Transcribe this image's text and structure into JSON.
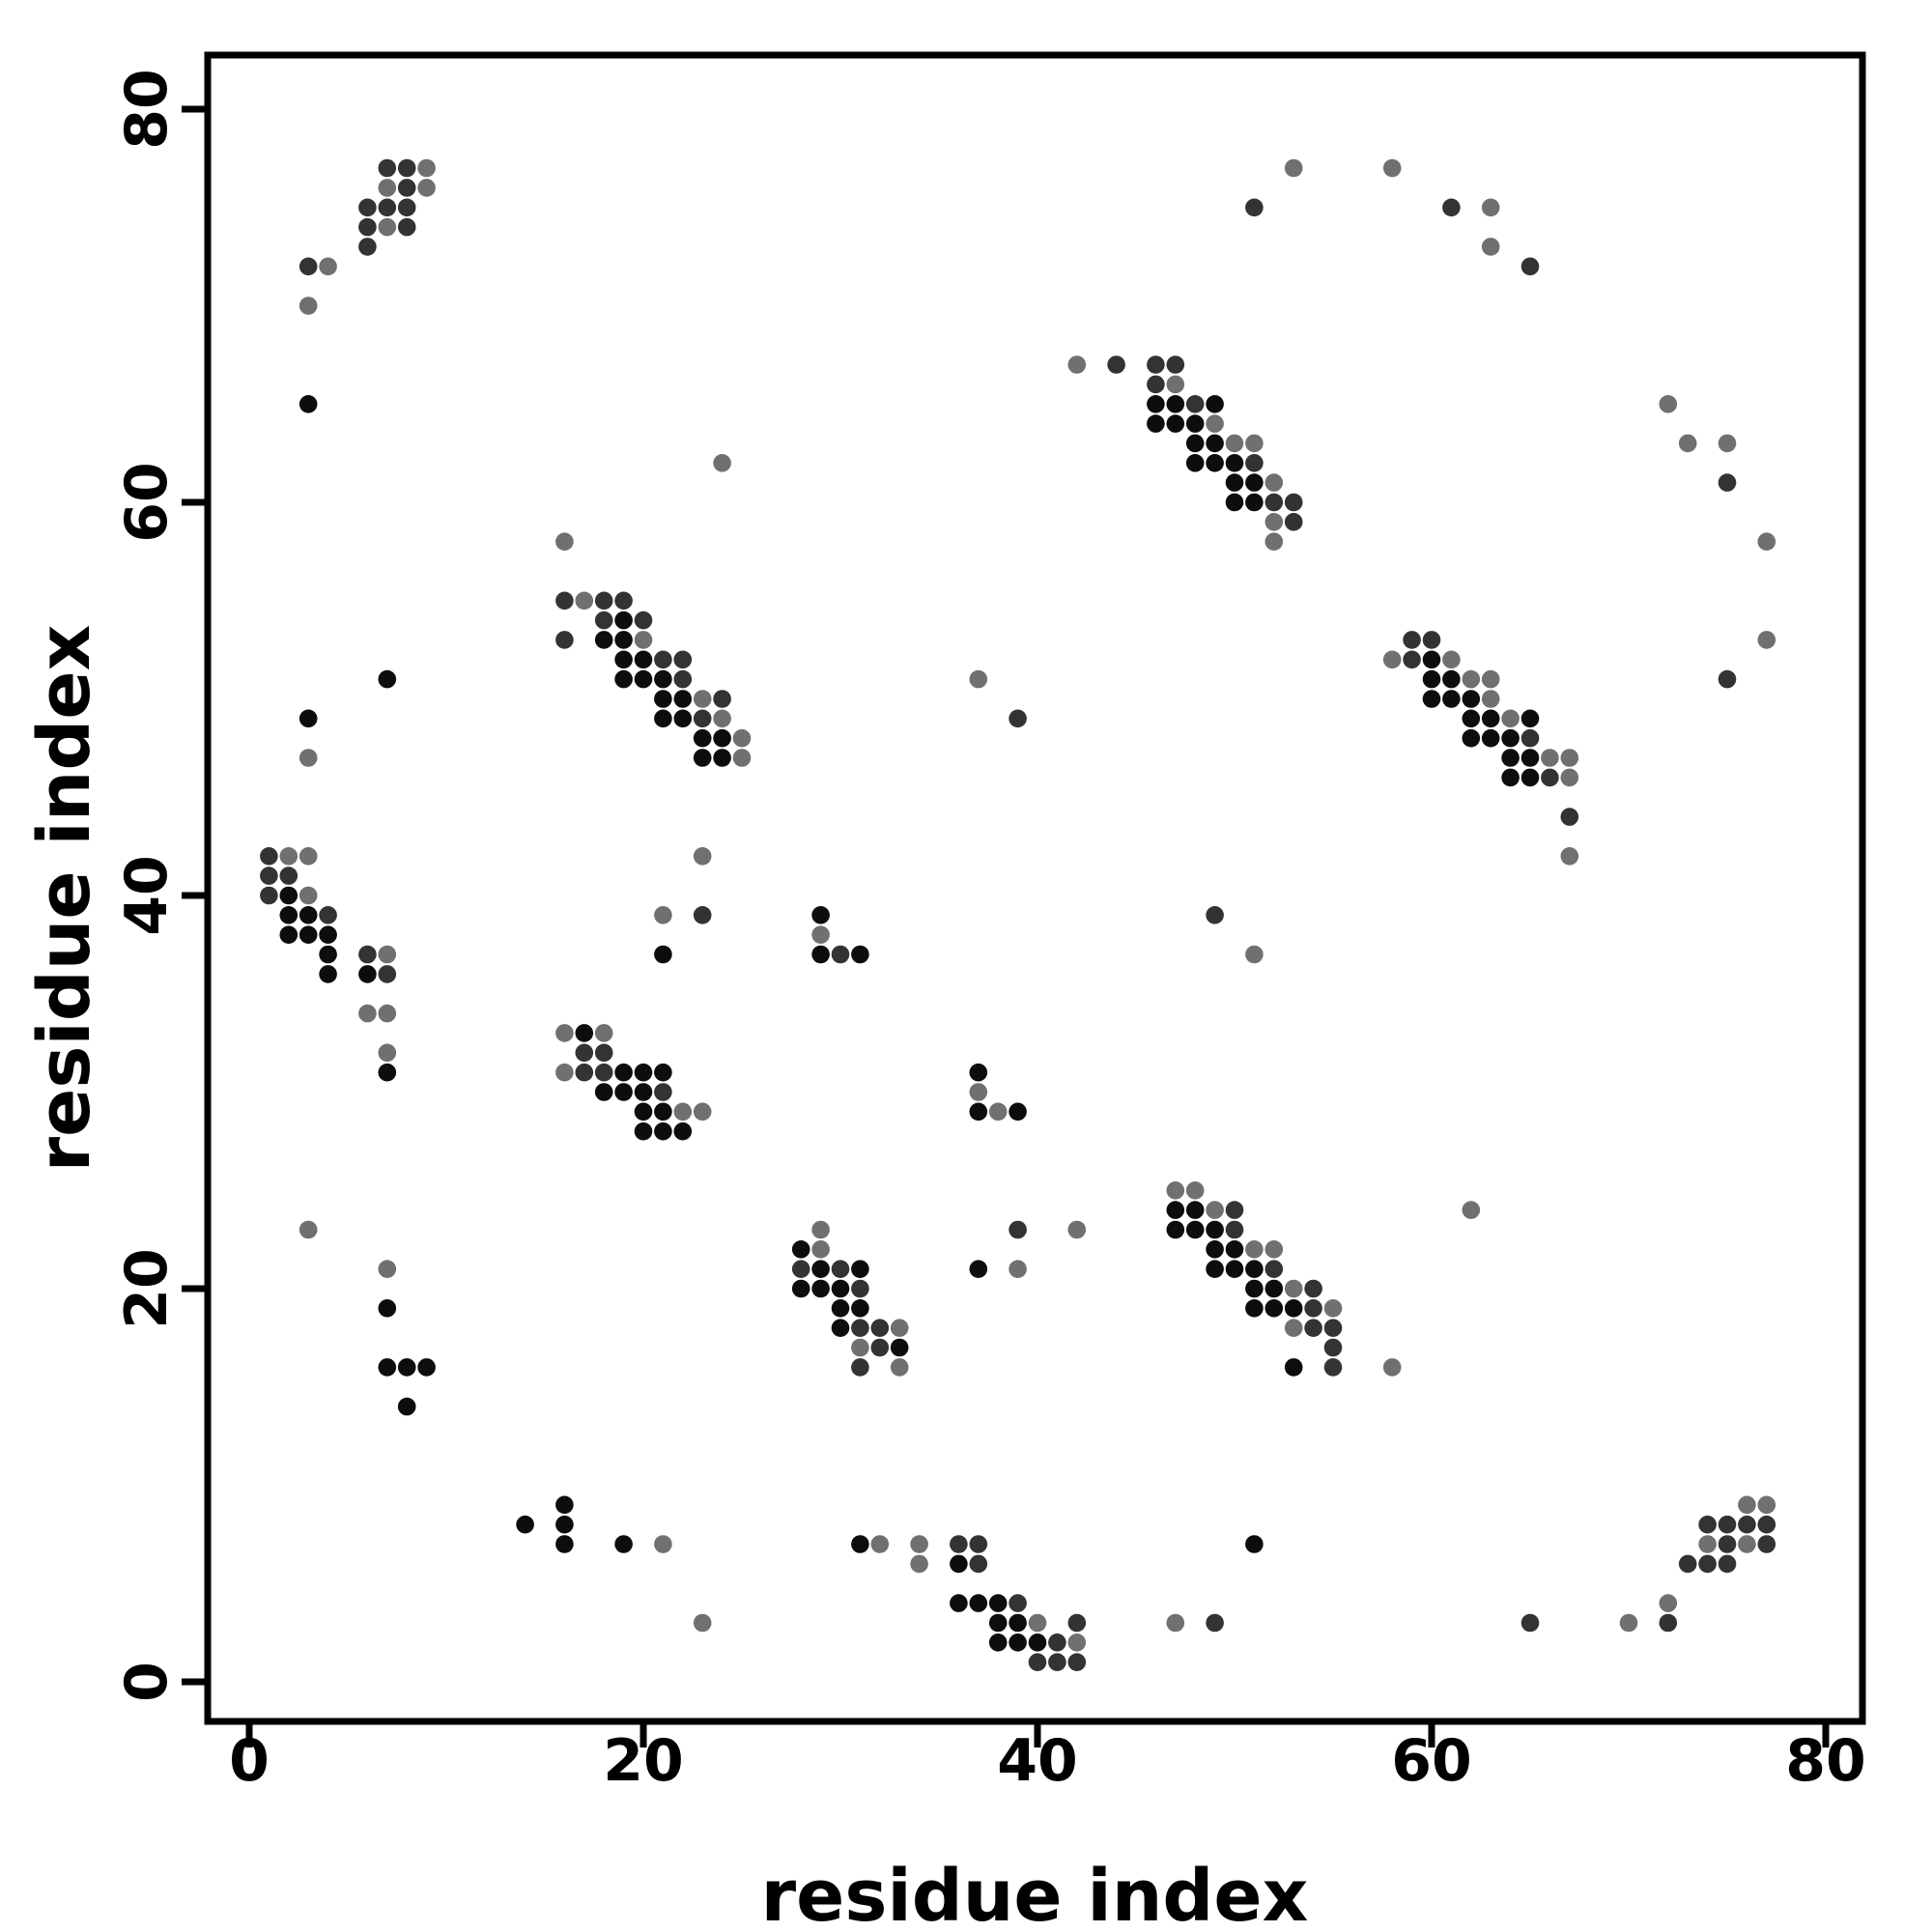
{
  "chart_data": {
    "type": "scatter",
    "title": "",
    "xlabel": "residue index",
    "ylabel": "residue index",
    "xlim": [
      -2.1,
      81.9
    ],
    "ylim": [
      -2.0,
      82.8
    ],
    "xticks": [
      0,
      20,
      40,
      60,
      80
    ],
    "yticks": [
      0,
      20,
      40,
      60,
      80
    ],
    "grid": false,
    "legend_position": "none",
    "marker": "circle",
    "shade_colors": {
      "b": "#0d0d0d",
      "d": "#333333",
      "g": "#707070"
    },
    "points": [
      [
        7,
        77,
        "d"
      ],
      [
        8,
        77,
        "d"
      ],
      [
        9,
        77,
        "g"
      ],
      [
        7,
        76,
        "g"
      ],
      [
        8,
        76,
        "d"
      ],
      [
        9,
        76,
        "g"
      ],
      [
        6,
        75,
        "d"
      ],
      [
        7,
        75,
        "d"
      ],
      [
        8,
        75,
        "d"
      ],
      [
        6,
        74,
        "d"
      ],
      [
        7,
        74,
        "g"
      ],
      [
        8,
        74,
        "d"
      ],
      [
        6,
        73,
        "d"
      ],
      [
        3,
        72,
        "d"
      ],
      [
        4,
        72,
        "g"
      ],
      [
        3,
        70,
        "g"
      ],
      [
        3,
        65,
        "b"
      ],
      [
        53,
        77,
        "g"
      ],
      [
        58,
        77,
        "g"
      ],
      [
        51,
        75,
        "d"
      ],
      [
        61,
        75,
        "d"
      ],
      [
        63,
        75,
        "g"
      ],
      [
        63,
        73,
        "g"
      ],
      [
        65,
        72,
        "d"
      ],
      [
        72,
        65,
        "g"
      ],
      [
        73,
        63,
        "g"
      ],
      [
        75,
        63,
        "g"
      ],
      [
        75,
        61,
        "d"
      ],
      [
        77,
        58,
        "g"
      ],
      [
        24,
        62,
        "g"
      ],
      [
        16,
        58,
        "g"
      ],
      [
        77,
        53,
        "g"
      ],
      [
        75,
        51,
        "d"
      ],
      [
        16,
        55,
        "d"
      ],
      [
        17,
        55,
        "g"
      ],
      [
        18,
        55,
        "d"
      ],
      [
        19,
        55,
        "d"
      ],
      [
        18,
        54,
        "d"
      ],
      [
        19,
        54,
        "b"
      ],
      [
        20,
        54,
        "d"
      ],
      [
        16,
        53,
        "d"
      ],
      [
        18,
        53,
        "b"
      ],
      [
        19,
        53,
        "b"
      ],
      [
        20,
        53,
        "g"
      ],
      [
        19,
        52,
        "b"
      ],
      [
        20,
        52,
        "b"
      ],
      [
        21,
        52,
        "d"
      ],
      [
        22,
        52,
        "d"
      ],
      [
        19,
        51,
        "b"
      ],
      [
        20,
        51,
        "b"
      ],
      [
        21,
        51,
        "b"
      ],
      [
        22,
        51,
        "d"
      ],
      [
        21,
        50,
        "b"
      ],
      [
        22,
        50,
        "b"
      ],
      [
        23,
        50,
        "g"
      ],
      [
        24,
        50,
        "d"
      ],
      [
        21,
        49,
        "b"
      ],
      [
        22,
        49,
        "b"
      ],
      [
        23,
        49,
        "d"
      ],
      [
        24,
        49,
        "g"
      ],
      [
        23,
        48,
        "b"
      ],
      [
        24,
        48,
        "b"
      ],
      [
        25,
        48,
        "g"
      ],
      [
        23,
        47,
        "b"
      ],
      [
        24,
        47,
        "b"
      ],
      [
        25,
        47,
        "g"
      ],
      [
        7,
        51,
        "b"
      ],
      [
        37,
        51,
        "g"
      ],
      [
        39,
        49,
        "d"
      ],
      [
        3,
        49,
        "b"
      ],
      [
        3,
        47,
        "g"
      ],
      [
        42,
        67,
        "g"
      ],
      [
        44,
        67,
        "d"
      ],
      [
        46,
        67,
        "d"
      ],
      [
        47,
        67,
        "d"
      ],
      [
        46,
        66,
        "d"
      ],
      [
        47,
        66,
        "g"
      ],
      [
        46,
        65,
        "b"
      ],
      [
        47,
        65,
        "b"
      ],
      [
        48,
        65,
        "d"
      ],
      [
        49,
        65,
        "b"
      ],
      [
        46,
        64,
        "b"
      ],
      [
        47,
        64,
        "b"
      ],
      [
        48,
        64,
        "b"
      ],
      [
        49,
        64,
        "g"
      ],
      [
        48,
        63,
        "b"
      ],
      [
        49,
        63,
        "b"
      ],
      [
        50,
        63,
        "g"
      ],
      [
        51,
        63,
        "g"
      ],
      [
        48,
        62,
        "b"
      ],
      [
        49,
        62,
        "b"
      ],
      [
        50,
        62,
        "b"
      ],
      [
        51,
        62,
        "d"
      ],
      [
        50,
        61,
        "b"
      ],
      [
        51,
        61,
        "b"
      ],
      [
        52,
        61,
        "g"
      ],
      [
        50,
        60,
        "b"
      ],
      [
        51,
        60,
        "b"
      ],
      [
        52,
        60,
        "d"
      ],
      [
        53,
        60,
        "d"
      ],
      [
        52,
        59,
        "g"
      ],
      [
        53,
        59,
        "d"
      ],
      [
        52,
        58,
        "g"
      ],
      [
        59,
        53,
        "d"
      ],
      [
        60,
        53,
        "d"
      ],
      [
        58,
        52,
        "g"
      ],
      [
        59,
        52,
        "d"
      ],
      [
        60,
        52,
        "b"
      ],
      [
        61,
        52,
        "g"
      ],
      [
        60,
        51,
        "b"
      ],
      [
        61,
        51,
        "b"
      ],
      [
        62,
        51,
        "g"
      ],
      [
        63,
        51,
        "g"
      ],
      [
        60,
        50,
        "b"
      ],
      [
        61,
        50,
        "b"
      ],
      [
        62,
        50,
        "b"
      ],
      [
        63,
        50,
        "g"
      ],
      [
        62,
        49,
        "b"
      ],
      [
        63,
        49,
        "b"
      ],
      [
        64,
        49,
        "g"
      ],
      [
        65,
        49,
        "b"
      ],
      [
        62,
        48,
        "b"
      ],
      [
        63,
        48,
        "b"
      ],
      [
        64,
        48,
        "b"
      ],
      [
        65,
        48,
        "d"
      ],
      [
        64,
        47,
        "b"
      ],
      [
        65,
        47,
        "b"
      ],
      [
        66,
        47,
        "g"
      ],
      [
        67,
        47,
        "g"
      ],
      [
        64,
        46,
        "b"
      ],
      [
        65,
        46,
        "b"
      ],
      [
        66,
        46,
        "d"
      ],
      [
        67,
        46,
        "g"
      ],
      [
        67,
        44,
        "d"
      ],
      [
        67,
        42,
        "g"
      ],
      [
        29,
        39,
        "b"
      ],
      [
        29,
        38,
        "g"
      ],
      [
        29,
        37,
        "b"
      ],
      [
        30,
        37,
        "d"
      ],
      [
        31,
        37,
        "b"
      ],
      [
        37,
        31,
        "b"
      ],
      [
        37,
        30,
        "g"
      ],
      [
        37,
        29,
        "b"
      ],
      [
        38,
        29,
        "g"
      ],
      [
        39,
        29,
        "b"
      ],
      [
        49,
        39,
        "d"
      ],
      [
        51,
        37,
        "g"
      ],
      [
        1,
        42,
        "d"
      ],
      [
        2,
        42,
        "g"
      ],
      [
        3,
        42,
        "g"
      ],
      [
        1,
        41,
        "d"
      ],
      [
        2,
        41,
        "d"
      ],
      [
        1,
        40,
        "d"
      ],
      [
        2,
        40,
        "b"
      ],
      [
        3,
        40,
        "g"
      ],
      [
        2,
        39,
        "b"
      ],
      [
        3,
        39,
        "b"
      ],
      [
        4,
        39,
        "d"
      ],
      [
        2,
        38,
        "b"
      ],
      [
        3,
        38,
        "b"
      ],
      [
        4,
        38,
        "b"
      ],
      [
        4,
        37,
        "b"
      ],
      [
        6,
        37,
        "d"
      ],
      [
        7,
        37,
        "g"
      ],
      [
        4,
        36,
        "b"
      ],
      [
        6,
        36,
        "b"
      ],
      [
        7,
        36,
        "d"
      ],
      [
        6,
        34,
        "g"
      ],
      [
        7,
        34,
        "g"
      ],
      [
        7,
        32,
        "g"
      ],
      [
        7,
        31,
        "b"
      ],
      [
        23,
        42,
        "g"
      ],
      [
        21,
        39,
        "g"
      ],
      [
        23,
        39,
        "d"
      ],
      [
        21,
        37,
        "b"
      ],
      [
        3,
        23,
        "g"
      ],
      [
        16,
        33,
        "g"
      ],
      [
        17,
        33,
        "b"
      ],
      [
        18,
        33,
        "g"
      ],
      [
        17,
        32,
        "d"
      ],
      [
        18,
        32,
        "d"
      ],
      [
        16,
        31,
        "g"
      ],
      [
        17,
        31,
        "d"
      ],
      [
        18,
        31,
        "d"
      ],
      [
        19,
        31,
        "b"
      ],
      [
        20,
        31,
        "b"
      ],
      [
        21,
        31,
        "b"
      ],
      [
        18,
        30,
        "b"
      ],
      [
        19,
        30,
        "b"
      ],
      [
        20,
        30,
        "b"
      ],
      [
        21,
        30,
        "d"
      ],
      [
        20,
        29,
        "b"
      ],
      [
        21,
        29,
        "b"
      ],
      [
        22,
        29,
        "g"
      ],
      [
        23,
        29,
        "g"
      ],
      [
        20,
        28,
        "b"
      ],
      [
        21,
        28,
        "b"
      ],
      [
        22,
        28,
        "b"
      ],
      [
        29,
        23,
        "g"
      ],
      [
        28,
        22,
        "b"
      ],
      [
        29,
        22,
        "g"
      ],
      [
        28,
        21,
        "d"
      ],
      [
        29,
        21,
        "b"
      ],
      [
        30,
        21,
        "d"
      ],
      [
        31,
        21,
        "b"
      ],
      [
        28,
        20,
        "b"
      ],
      [
        29,
        20,
        "b"
      ],
      [
        30,
        20,
        "b"
      ],
      [
        31,
        20,
        "d"
      ],
      [
        30,
        19,
        "b"
      ],
      [
        31,
        19,
        "b"
      ],
      [
        30,
        18,
        "b"
      ],
      [
        31,
        18,
        "d"
      ],
      [
        32,
        18,
        "d"
      ],
      [
        33,
        18,
        "g"
      ],
      [
        31,
        17,
        "g"
      ],
      [
        32,
        17,
        "d"
      ],
      [
        33,
        17,
        "b"
      ],
      [
        31,
        16,
        "d"
      ],
      [
        33,
        16,
        "g"
      ],
      [
        37,
        21,
        "b"
      ],
      [
        39,
        21,
        "g"
      ],
      [
        39,
        23,
        "d"
      ],
      [
        42,
        23,
        "g"
      ],
      [
        47,
        25,
        "g"
      ],
      [
        48,
        25,
        "g"
      ],
      [
        47,
        24,
        "b"
      ],
      [
        48,
        24,
        "b"
      ],
      [
        49,
        24,
        "g"
      ],
      [
        50,
        24,
        "d"
      ],
      [
        47,
        23,
        "b"
      ],
      [
        48,
        23,
        "b"
      ],
      [
        49,
        23,
        "b"
      ],
      [
        50,
        23,
        "d"
      ],
      [
        49,
        22,
        "b"
      ],
      [
        50,
        22,
        "b"
      ],
      [
        51,
        22,
        "g"
      ],
      [
        52,
        22,
        "g"
      ],
      [
        49,
        21,
        "b"
      ],
      [
        50,
        21,
        "b"
      ],
      [
        51,
        21,
        "b"
      ],
      [
        52,
        21,
        "d"
      ],
      [
        51,
        20,
        "b"
      ],
      [
        52,
        20,
        "b"
      ],
      [
        53,
        20,
        "g"
      ],
      [
        54,
        20,
        "d"
      ],
      [
        51,
        19,
        "b"
      ],
      [
        52,
        19,
        "b"
      ],
      [
        53,
        19,
        "b"
      ],
      [
        54,
        19,
        "d"
      ],
      [
        55,
        19,
        "g"
      ],
      [
        53,
        18,
        "g"
      ],
      [
        54,
        18,
        "d"
      ],
      [
        55,
        18,
        "d"
      ],
      [
        55,
        17,
        "d"
      ],
      [
        53,
        16,
        "b"
      ],
      [
        55,
        16,
        "d"
      ],
      [
        58,
        16,
        "g"
      ],
      [
        62,
        24,
        "g"
      ],
      [
        31,
        7,
        "b"
      ],
      [
        32,
        7,
        "g"
      ],
      [
        34,
        7,
        "g"
      ],
      [
        36,
        7,
        "d"
      ],
      [
        37,
        7,
        "d"
      ],
      [
        34,
        6,
        "g"
      ],
      [
        36,
        6,
        "b"
      ],
      [
        37,
        6,
        "d"
      ],
      [
        36,
        4,
        "b"
      ],
      [
        37,
        4,
        "b"
      ],
      [
        38,
        4,
        "b"
      ],
      [
        39,
        4,
        "d"
      ],
      [
        38,
        3,
        "b"
      ],
      [
        39,
        3,
        "b"
      ],
      [
        40,
        3,
        "g"
      ],
      [
        42,
        3,
        "d"
      ],
      [
        38,
        2,
        "b"
      ],
      [
        39,
        2,
        "b"
      ],
      [
        40,
        2,
        "b"
      ],
      [
        41,
        2,
        "d"
      ],
      [
        42,
        2,
        "g"
      ],
      [
        40,
        1,
        "d"
      ],
      [
        41,
        1,
        "d"
      ],
      [
        42,
        1,
        "d"
      ],
      [
        7,
        21,
        "g"
      ],
      [
        7,
        19,
        "b"
      ],
      [
        7,
        16,
        "b"
      ],
      [
        8,
        16,
        "b"
      ],
      [
        9,
        16,
        "b"
      ],
      [
        8,
        14,
        "b"
      ],
      [
        14,
        8,
        "b"
      ],
      [
        16,
        9,
        "b"
      ],
      [
        16,
        8,
        "b"
      ],
      [
        16,
        7,
        "b"
      ],
      [
        19,
        7,
        "b"
      ],
      [
        21,
        7,
        "g"
      ],
      [
        23,
        3,
        "g"
      ],
      [
        51,
        7,
        "b"
      ],
      [
        47,
        3,
        "g"
      ],
      [
        49,
        3,
        "d"
      ],
      [
        65,
        3,
        "d"
      ],
      [
        70,
        3,
        "g"
      ],
      [
        72,
        4,
        "g"
      ],
      [
        72,
        3,
        "d"
      ],
      [
        76,
        9,
        "g"
      ],
      [
        77,
        9,
        "g"
      ],
      [
        74,
        8,
        "d"
      ],
      [
        75,
        8,
        "d"
      ],
      [
        76,
        8,
        "d"
      ],
      [
        77,
        8,
        "d"
      ],
      [
        74,
        7,
        "g"
      ],
      [
        75,
        7,
        "d"
      ],
      [
        76,
        7,
        "g"
      ],
      [
        77,
        7,
        "d"
      ],
      [
        73,
        6,
        "d"
      ],
      [
        74,
        6,
        "d"
      ],
      [
        75,
        6,
        "d"
      ]
    ]
  }
}
